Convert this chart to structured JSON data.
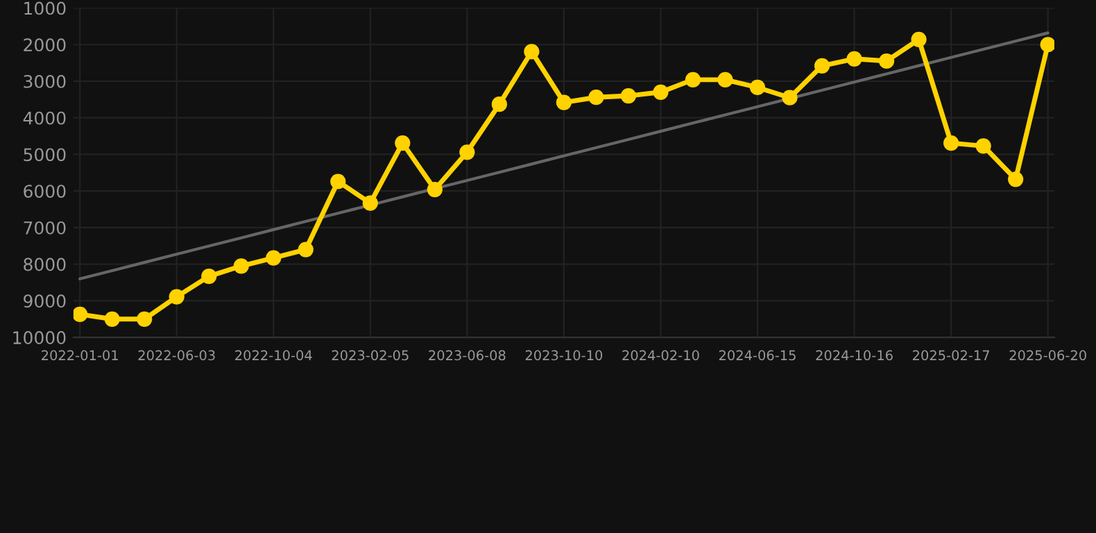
{
  "chart_data": {
    "type": "line",
    "categories": [
      "2022-01-01",
      null,
      null,
      "2022-06-03",
      null,
      null,
      "2022-10-04",
      null,
      null,
      "2023-02-05",
      null,
      null,
      "2023-06-08",
      null,
      null,
      "2023-10-10",
      null,
      null,
      "2024-02-10",
      null,
      null,
      "2024-06-15",
      null,
      null,
      "2024-10-16",
      null,
      null,
      "2025-02-17",
      null,
      null,
      "2025-06-20"
    ],
    "series": [
      {
        "color": "#ffd200",
        "marker": "circle",
        "values": [
          9370,
          9500,
          9500,
          8890,
          8330,
          8050,
          7830,
          7600,
          5740,
          6330,
          4690,
          5960,
          4940,
          3630,
          2190,
          3580,
          3440,
          3400,
          3300,
          2960,
          2960,
          3170,
          3450,
          2580,
          2390,
          2450,
          1860,
          4690,
          4770,
          5680,
          2000
        ]
      },
      {
        "type": "line",
        "color": "#666666",
        "marker": "none",
        "values": [
          8400,
          8176,
          7952,
          7728,
          7504,
          7280,
          7056,
          6832,
          6608,
          6384,
          6160,
          5936,
          5712,
          5488,
          5264,
          5040,
          4816,
          4592,
          4368,
          4144,
          3920,
          3696,
          3472,
          3248,
          3024,
          2800,
          2576,
          2352,
          2128,
          1904,
          1680
        ]
      }
    ],
    "ylim": [
      10000,
      1000
    ],
    "yticks": [
      1000,
      2000,
      3000,
      4000,
      5000,
      6000,
      7000,
      8000,
      9000,
      10000
    ],
    "grid": true
  }
}
